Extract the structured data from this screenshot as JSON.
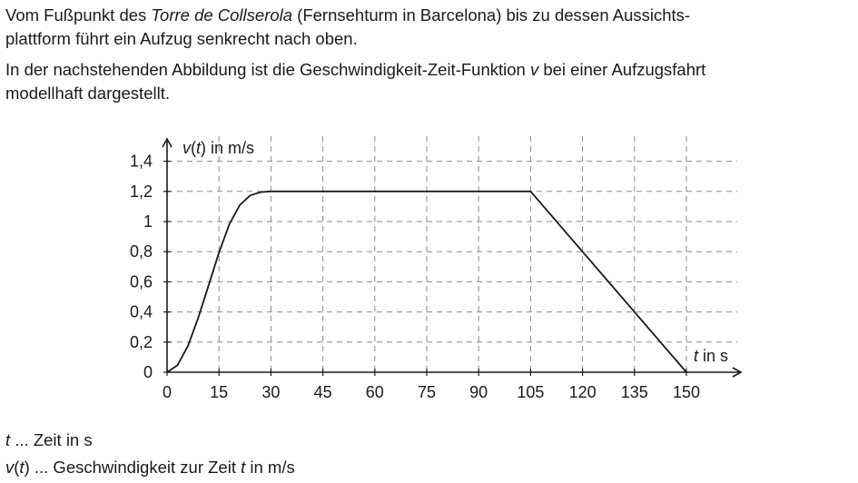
{
  "intro": {
    "p1_part1": "Vom Fußpunkt des ",
    "p1_italic": "Torre de Collserola",
    "p1_part2": " (Fernsehturm in Barcelona) bis zu dessen Aussichts-",
    "p1_line2": "plattform führt ein Aufzug senkrecht nach oben.",
    "p2_part1": "In der nachstehenden Abbildung ist die Geschwindigkeit-Zeit-Funktion ",
    "p2_italic": "v",
    "p2_part2": " bei einer Aufzugsfahrt",
    "p2_line2": "modellhaft dargestellt."
  },
  "legend": {
    "t_symbol": "t",
    "t_text": " ... Zeit in s",
    "v_symbol": "v",
    "v_paren_open": "(",
    "v_arg": "t",
    "v_paren_close": ")",
    "v_text_part1": " ... Geschwindigkeit zur Zeit ",
    "v_text_italic": "t",
    "v_text_part2": " in m/s"
  },
  "chart_data": {
    "type": "line",
    "ylabel": {
      "prefix_italic": "v",
      "open": "(",
      "arg_italic": "t",
      "suffix": ") in m/s"
    },
    "xlabel": {
      "prefix_italic": "t",
      "suffix": " in s"
    },
    "xlim": [
      0,
      157.5
    ],
    "ylim": [
      0,
      1.5
    ],
    "x_ticks": [
      0,
      15,
      30,
      45,
      60,
      75,
      90,
      105,
      120,
      135,
      150
    ],
    "x_tick_labels": [
      "0",
      "15",
      "30",
      "45",
      "60",
      "75",
      "90",
      "105",
      "120",
      "135",
      "150"
    ],
    "y_ticks": [
      0,
      0.2,
      0.4,
      0.6,
      0.8,
      1,
      1.2,
      1.4
    ],
    "y_tick_labels": [
      "0",
      "0,2",
      "0,4",
      "0,6",
      "0,8",
      "1",
      "1,2",
      "1,4"
    ],
    "grid": true,
    "grid_style": "dashed",
    "series": [
      {
        "x": [
          0,
          3,
          6,
          9,
          12,
          15,
          18,
          21,
          24,
          27,
          30,
          105,
          150
        ],
        "y": [
          0,
          0.046,
          0.173,
          0.36,
          0.577,
          0.794,
          0.982,
          1.109,
          1.173,
          1.195,
          1.2,
          1.2,
          0
        ]
      }
    ]
  }
}
